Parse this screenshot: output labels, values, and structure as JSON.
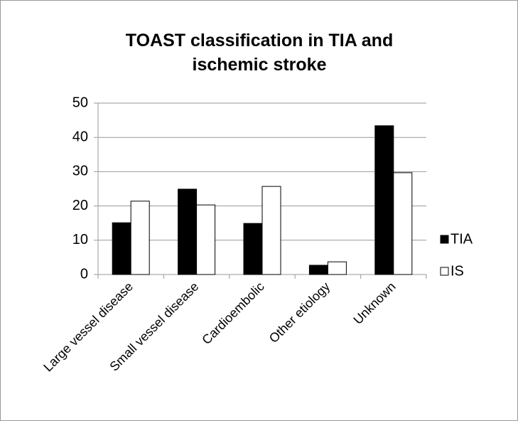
{
  "chart_data": {
    "type": "bar",
    "title": "TOAST classification in TIA and ischemic stroke",
    "categories": [
      "Large vessel disease",
      "Small vessel disease",
      "Cardioembolic",
      "Other etiology",
      "Unknown"
    ],
    "series": [
      {
        "name": "TIA",
        "color": "#000000",
        "values": [
          15.1,
          24.9,
          14.9,
          2.7,
          43.4
        ]
      },
      {
        "name": "IS",
        "color": "#ffffff",
        "values": [
          21.4,
          20.3,
          25.7,
          3.7,
          29.7
        ]
      }
    ],
    "ylim": [
      0,
      50
    ],
    "yticks": [
      0,
      10,
      20,
      30,
      40,
      50
    ],
    "grid": true,
    "legend": "right"
  }
}
